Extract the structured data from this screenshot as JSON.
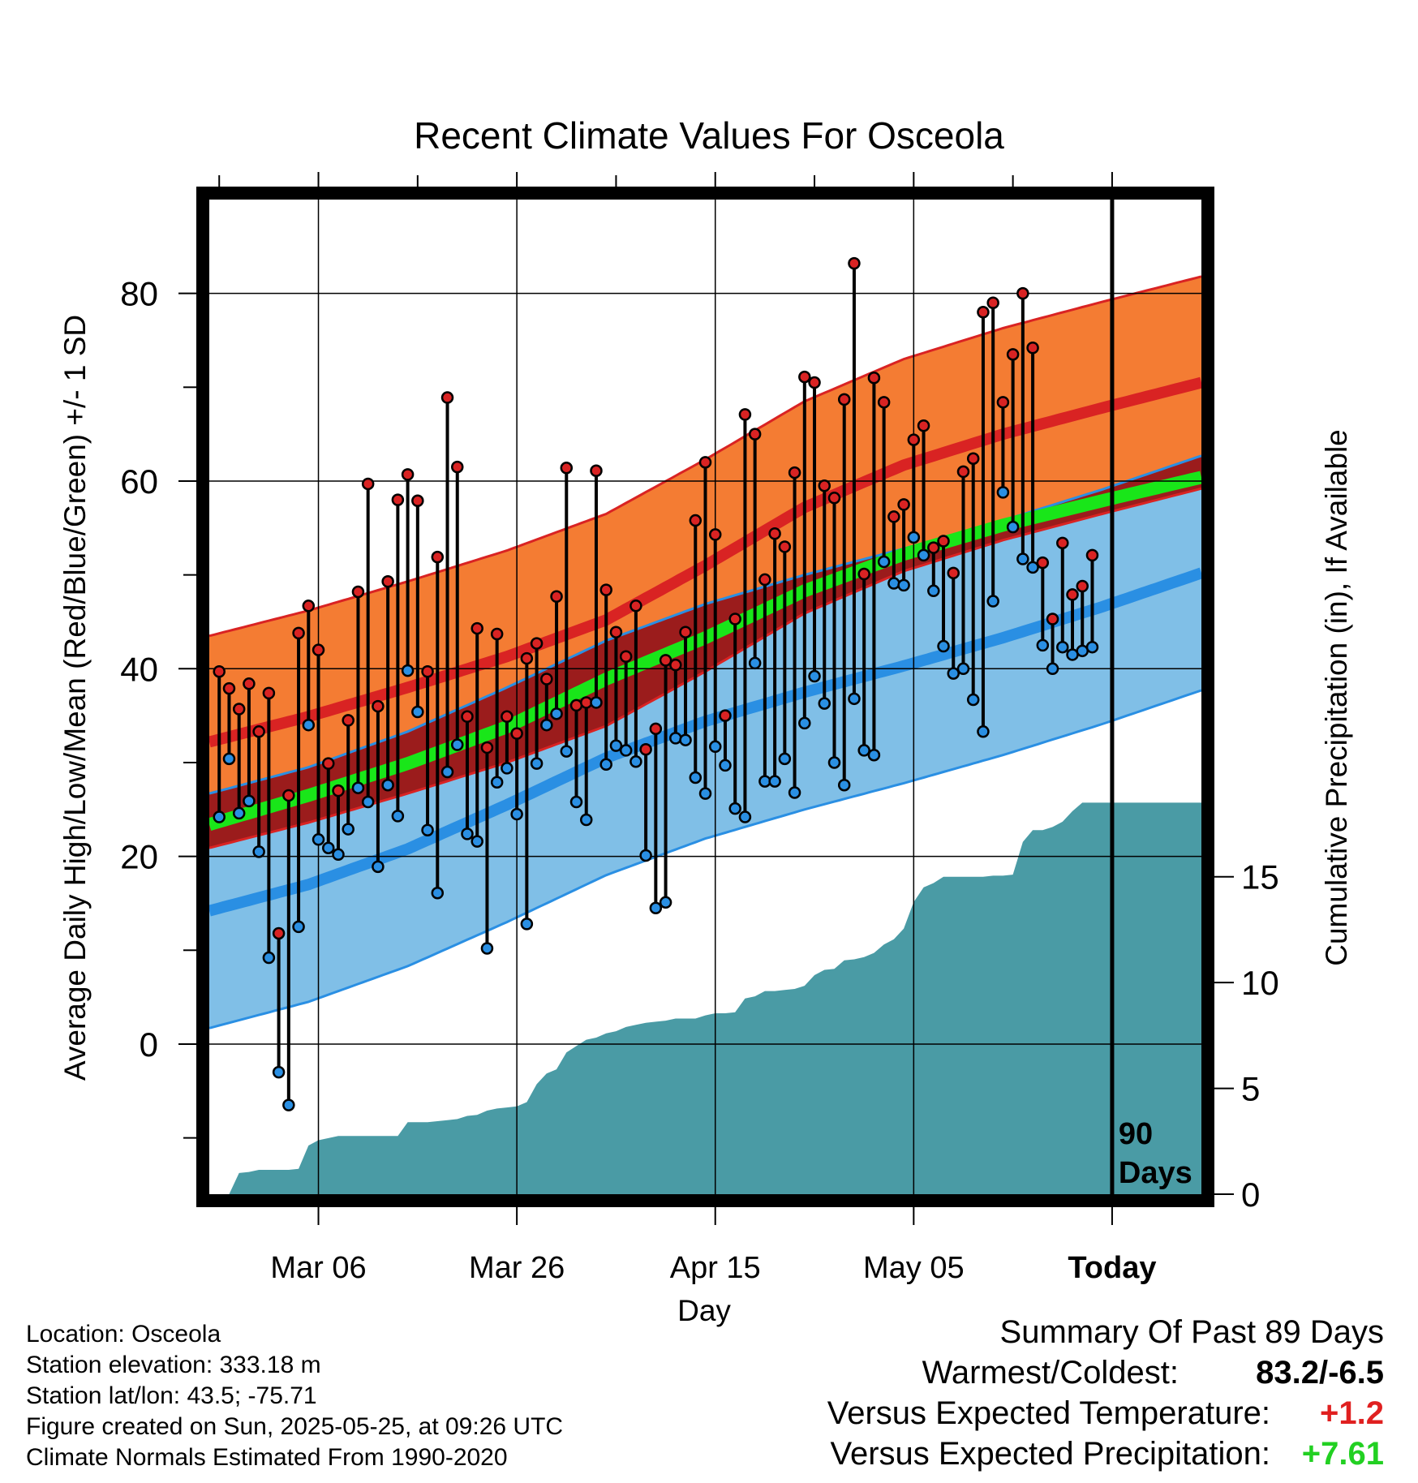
{
  "chart_data": {
    "type": "line",
    "title": "Recent Climate Values For Osceola",
    "xlabel": "Day",
    "ylabel_left": "Average Daily High/Low/Mean (Red/Blue/Green) +/- 1 SD",
    "ylabel_right": "Cumulative Precipitation (in), If Available",
    "x_ticks": [
      {
        "day": 11,
        "label": "Mar 06"
      },
      {
        "day": 31,
        "label": "Mar 26"
      },
      {
        "day": 51,
        "label": "Apr 15"
      },
      {
        "day": 71,
        "label": "May 05"
      },
      {
        "day": 91,
        "label": "Today"
      }
    ],
    "x_range": [
      0,
      100
    ],
    "today_day": 91,
    "today_marker_label": [
      "90",
      "Days"
    ],
    "y_left_ticks": [
      "0",
      "20",
      "40",
      "60",
      "80"
    ],
    "y_left_range": [
      -16,
      90
    ],
    "y_right_ticks": [
      "0",
      "5",
      "10",
      "15"
    ],
    "y_right_range": [
      0,
      47
    ],
    "grid": true,
    "normals": {
      "days": [
        0,
        10,
        20,
        30,
        40,
        50,
        60,
        70,
        80,
        90,
        100
      ],
      "high_mean": [
        32.2,
        34.9,
        38.0,
        41.3,
        45.2,
        51.0,
        57.2,
        61.7,
        65.0,
        67.8,
        70.5
      ],
      "high_sd": 11.3,
      "low_mean": [
        14.2,
        17.0,
        20.8,
        25.5,
        30.5,
        34.4,
        37.5,
        40.3,
        43.3,
        46.6,
        50.2
      ],
      "low_sd": 12.5,
      "avg_mean": [
        23.4,
        26.5,
        29.9,
        33.8,
        38.9,
        43.3,
        48.3,
        52.2,
        55.3,
        57.9,
        60.4
      ]
    },
    "series": [
      {
        "name": "High",
        "color": "#d92323",
        "values": [
          39.7,
          37.9,
          35.7,
          38.4,
          33.3,
          37.4,
          11.8,
          26.5,
          43.8,
          46.7,
          42.0,
          29.9,
          27.0,
          34.5,
          48.2,
          59.7,
          36.0,
          49.3,
          58.0,
          60.7,
          57.9,
          39.7,
          51.9,
          68.9,
          61.5,
          34.9,
          44.3,
          31.6,
          43.7,
          34.9,
          33.1,
          41.1,
          42.7,
          38.9,
          47.7,
          61.4,
          36.1,
          36.4,
          61.1,
          48.4,
          43.9,
          41.3,
          46.7,
          31.4,
          33.6,
          40.9,
          40.4,
          43.9,
          55.8,
          62.0,
          54.3,
          35.0,
          45.3,
          67.1,
          65.0,
          49.5,
          54.4,
          53.0,
          60.9,
          71.1,
          70.5,
          59.5,
          58.2,
          68.7,
          83.2,
          50.1,
          71.0,
          68.4,
          56.2,
          57.5,
          64.4,
          65.9,
          52.9,
          53.6,
          50.2,
          61.0,
          62.4,
          78.0,
          79.0,
          68.4,
          73.5,
          80.0,
          74.2,
          51.3,
          45.3,
          53.4,
          47.9,
          48.8,
          52.1
        ]
      },
      {
        "name": "Low",
        "color": "#2a8fe3",
        "values": [
          24.2,
          30.4,
          24.6,
          25.9,
          20.5,
          9.2,
          -3.0,
          -6.5,
          12.5,
          34.0,
          21.8,
          20.9,
          20.2,
          22.9,
          27.3,
          25.8,
          18.9,
          27.6,
          24.3,
          39.8,
          35.4,
          22.8,
          16.1,
          29.0,
          31.9,
          22.4,
          21.6,
          10.2,
          27.9,
          29.4,
          24.5,
          12.8,
          29.9,
          34.0,
          35.2,
          31.2,
          25.8,
          23.9,
          36.4,
          29.8,
          31.8,
          31.3,
          30.1,
          20.1,
          14.5,
          15.1,
          32.6,
          32.4,
          28.4,
          26.7,
          31.7,
          29.7,
          25.1,
          24.2,
          40.6,
          28.0,
          28.0,
          30.4,
          26.8,
          34.2,
          39.2,
          36.3,
          30.0,
          27.6,
          36.8,
          31.3,
          30.8,
          51.4,
          49.1,
          48.9,
          54.0,
          52.1,
          48.3,
          42.4,
          39.5,
          40.0,
          36.7,
          33.3,
          47.2,
          58.8,
          55.1,
          51.7,
          50.8,
          42.5,
          40.0,
          42.3,
          41.5,
          41.9,
          42.3
        ]
      }
    ],
    "precip_cumulative": [
      0,
      0,
      0,
      1,
      1.05,
      1.15,
      1.15,
      1.15,
      1.15,
      1.2,
      2.3,
      2.55,
      2.65,
      2.75,
      2.75,
      2.75,
      2.75,
      2.75,
      2.75,
      2.75,
      3.4,
      3.4,
      3.4,
      3.45,
      3.5,
      3.55,
      3.7,
      3.75,
      3.95,
      4.05,
      4.1,
      4.15,
      4.35,
      5.2,
      5.7,
      5.9,
      6.7,
      7.0,
      7.3,
      7.4,
      7.6,
      7.7,
      7.9,
      8.0,
      8.1,
      8.15,
      8.2,
      8.3,
      8.3,
      8.3,
      8.45,
      8.55,
      8.55,
      8.6,
      9.25,
      9.35,
      9.6,
      9.6,
      9.65,
      9.7,
      9.85,
      10.35,
      10.6,
      10.65,
      11.05,
      11.1,
      11.2,
      11.4,
      11.8,
      12.05,
      12.55,
      13.8,
      14.5,
      14.7,
      15.0,
      15.0,
      15.0,
      15.0,
      15.0,
      15.05,
      15.05,
      15.1,
      16.65,
      17.2,
      17.2,
      17.35,
      17.6,
      18.1,
      18.5,
      18.5,
      18.5,
      18.5,
      18.5,
      18.5,
      18.5,
      18.5,
      18.5,
      18.5,
      18.5,
      18.5,
      18.5
    ],
    "colors": {
      "high_band": "#f47c33",
      "high_line": "#d92323",
      "high_edge": "#d92323",
      "low_band": "#80bfe7",
      "low_line": "#2a8fe3",
      "low_edge": "#2a8fe3",
      "avg_line": "#19e619",
      "overlap": "#9b1c1c",
      "precip": "#4a9ba5"
    }
  },
  "location": "Location: Osceola",
  "elevation": "Station elevation: 333.18 m",
  "latlon": "Station lat/lon: 43.5; -75.71",
  "created": "Figure created on Sun, 2025-05-25, at 09:26 UTC",
  "normals_source": "Climate Normals Estimated From 1990-2020",
  "summary": {
    "title": "Summary Of Past 89 Days",
    "warmest_coldest_label": "Warmest/Coldest:",
    "warmest_coldest_value": "83.2/-6.5",
    "temp_label": "Versus Expected Temperature:",
    "temp_value": "+1.2",
    "temp_color": "#e02020",
    "precip_label": "Versus Expected Precipitation:",
    "precip_value": "+7.61",
    "precip_color": "#22d022"
  }
}
